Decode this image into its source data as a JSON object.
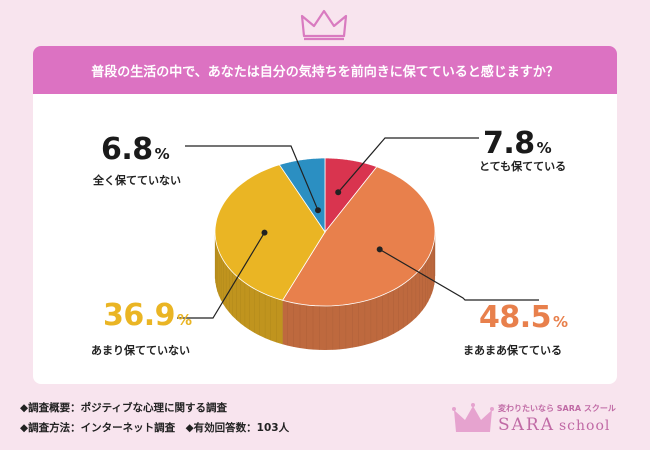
{
  "header": {
    "question": "普段の生活の中で、あなたは自分の気持ちを前向きに保てていると感じますか？"
  },
  "chart_data": {
    "type": "pie",
    "title": "普段の生活の中で、あなたは自分の気持ちを前向きに保てていると感じますか？",
    "slices": [
      {
        "label": "とても保てている",
        "value": 7.8,
        "color": "#d9344f"
      },
      {
        "label": "まあまあ保てている",
        "value": 48.5,
        "color": "#e8804c"
      },
      {
        "label": "あまり保てていない",
        "value": 36.9,
        "color": "#eab524"
      },
      {
        "label": "全く保てていない",
        "value": 6.8,
        "color": "#2b8fc2"
      }
    ],
    "unit": "%"
  },
  "labels": {
    "s0": {
      "num": "7.8",
      "unit": "%",
      "text": "とても保てている"
    },
    "s1": {
      "num": "48.5",
      "unit": "%",
      "text": "まあまあ保てている"
    },
    "s2": {
      "num": "36.9",
      "unit": "%",
      "text": "あまり保てていない"
    },
    "s3": {
      "num": "6.8",
      "unit": "%",
      "text": "全く保てていない"
    }
  },
  "footer": {
    "line1": "◆調査概要：ポジティブな心理に関する調査",
    "line2": "◆調査方法：インターネット調査　◆有効回答数：103人"
  },
  "logo": {
    "tagline": "変わりたいなら SARA スクール",
    "name": "SARA",
    "sub": "school"
  },
  "colors": {
    "header": "#dc72c2",
    "background": "#f8e4ee",
    "accent": "#c06aa5"
  }
}
